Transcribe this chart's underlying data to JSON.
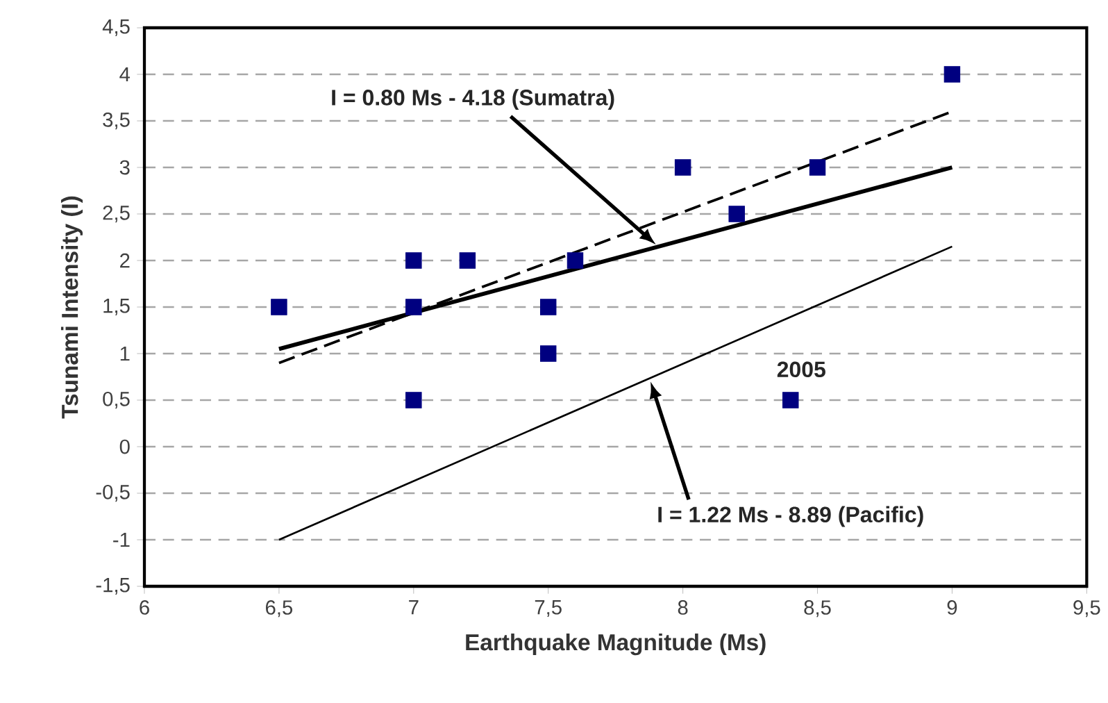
{
  "chart_data": {
    "type": "scatter",
    "xlabel": "Earthquake Magnitude (Ms)",
    "ylabel": "Tsunami Intensity (I)",
    "xlim": [
      6,
      9.5
    ],
    "ylim": [
      -1.5,
      4.5
    ],
    "xticks": [
      6,
      {
        "value": 6.5,
        "label": "6,5"
      },
      7,
      {
        "value": 7.5,
        "label": "7,5"
      },
      8,
      {
        "value": 8.5,
        "label": "8,5"
      },
      9,
      {
        "value": 9.5,
        "label": "9,5"
      }
    ],
    "yticks": [
      {
        "value": -1.5,
        "label": "-1,5"
      },
      -1,
      {
        "value": -0.5,
        "label": "-0,5"
      },
      0,
      {
        "value": 0.5,
        "label": "0,5"
      },
      1,
      {
        "value": 1.5,
        "label": "1,5"
      },
      2,
      {
        "value": 2.5,
        "label": "2,5"
      },
      3,
      {
        "value": 3.5,
        "label": "3,5"
      },
      4,
      {
        "value": 4.5,
        "label": "4,5"
      }
    ],
    "grid": "y",
    "marker": "square",
    "series": [
      {
        "color": "#000080",
        "x": [
          6.5,
          7,
          7,
          7,
          7.2,
          7.5,
          7.5,
          7.6,
          8,
          8.2,
          8.4,
          8.5,
          9
        ],
        "values": [
          1.5,
          2,
          1.5,
          0.5,
          2,
          1.5,
          1,
          2,
          3,
          2.5,
          0.5,
          3,
          4
        ]
      },
      {
        "type": "line",
        "color": "#000000",
        "marker": "none",
        "line_style": "solid",
        "x": [
          6.5,
          9
        ],
        "values": [
          1.05,
          3.0
        ]
      },
      {
        "type": "line",
        "color": "#000000",
        "marker": "none",
        "line_style": "dashed",
        "x": [
          6.5,
          9
        ],
        "values": [
          0.9,
          3.6
        ]
      },
      {
        "type": "line",
        "color": "#000000",
        "marker": "none",
        "line_style": "solid",
        "x": [
          6.5,
          9
        ],
        "values": [
          -1.0,
          2.15
        ]
      }
    ],
    "annotations": [
      "I = 0.80 Ms - 4.18 (Sumatra)",
      {
        "text": "2005",
        "x": 8.4,
        "y": 0.5
      },
      "I = 1.22 Ms - 8.89 (Pacific)"
    ]
  }
}
